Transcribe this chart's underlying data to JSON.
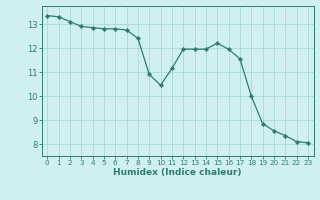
{
  "x": [
    0,
    1,
    2,
    3,
    4,
    5,
    6,
    7,
    8,
    9,
    10,
    11,
    12,
    13,
    14,
    15,
    16,
    17,
    18,
    19,
    20,
    21,
    22,
    23
  ],
  "y": [
    13.35,
    13.3,
    13.1,
    12.9,
    12.85,
    12.8,
    12.8,
    12.75,
    12.4,
    10.9,
    10.45,
    11.15,
    11.95,
    11.95,
    11.95,
    12.2,
    11.95,
    11.55,
    10.0,
    8.85,
    8.55,
    8.35,
    8.1,
    8.05
  ],
  "line_color": "#2e7d6e",
  "marker": "D",
  "marker_size": 2.2,
  "bg_color": "#d0f0f0",
  "grid_color": "#a8d8d8",
  "tick_color": "#2e7d6e",
  "label_color": "#2e7d6e",
  "xlabel": "Humidex (Indice chaleur)",
  "xlim": [
    -0.5,
    23.5
  ],
  "ylim": [
    7.5,
    13.75
  ],
  "yticks": [
    8,
    9,
    10,
    11,
    12,
    13
  ],
  "xticks": [
    0,
    1,
    2,
    3,
    4,
    5,
    6,
    7,
    8,
    9,
    10,
    11,
    12,
    13,
    14,
    15,
    16,
    17,
    18,
    19,
    20,
    21,
    22,
    23
  ],
  "xlabel_fontsize": 6.5,
  "xtick_fontsize": 5.2,
  "ytick_fontsize": 6.0
}
